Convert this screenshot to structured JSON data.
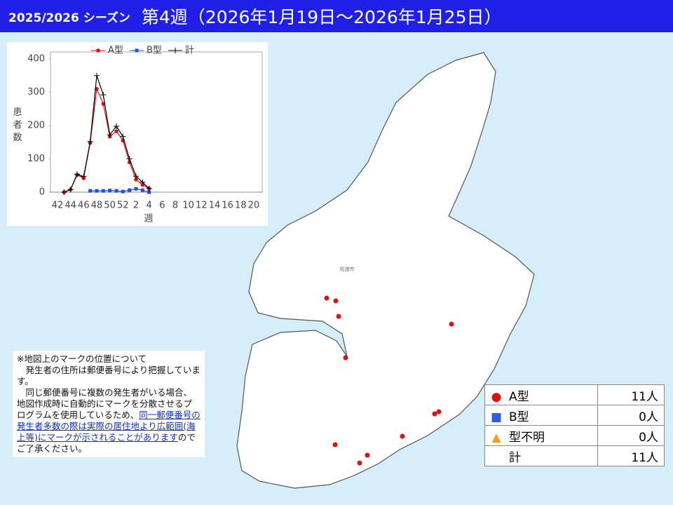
{
  "header": {
    "season": "2025/2026 シーズン",
    "week": "第4週（2026年1月19日～2026年1月25日）"
  },
  "chart_data": {
    "type": "line",
    "y_label": "患者数",
    "x_label": "週",
    "categories": [
      "42",
      null,
      "44",
      null,
      "46",
      null,
      "48",
      null,
      "50",
      null,
      "52",
      null,
      "2",
      null,
      "4",
      null,
      "6",
      null,
      "8",
      null,
      "10",
      null,
      "12",
      null,
      "14",
      null,
      "16",
      null,
      "18",
      null,
      "20"
    ],
    "series": [
      {
        "name": "A型",
        "color": "#e01010",
        "marker": "circle",
        "values": [
          null,
          0,
          8,
          52,
          42,
          148,
          310,
          265,
          167,
          183,
          155,
          90,
          38,
          22,
          11,
          null,
          null,
          null,
          null,
          null,
          null,
          null,
          null,
          null,
          null,
          null,
          null,
          null,
          null,
          null,
          null
        ]
      },
      {
        "name": "B型",
        "color": "#2050e0",
        "marker": "square",
        "values": [
          null,
          null,
          null,
          null,
          null,
          4,
          4,
          4,
          5,
          4,
          2,
          6,
          10,
          6,
          0,
          null,
          null,
          null,
          null,
          null,
          null,
          null,
          null,
          null,
          null,
          null,
          null,
          null,
          null,
          null,
          null
        ]
      },
      {
        "name": "計",
        "color": "#000000",
        "marker": "plus",
        "values": [
          null,
          0,
          8,
          54,
          47,
          152,
          350,
          292,
          172,
          198,
          167,
          100,
          48,
          30,
          11,
          null,
          null,
          null,
          null,
          null,
          null,
          null,
          null,
          null,
          null,
          null,
          null,
          null,
          null,
          null,
          null
        ]
      }
    ],
    "ylim": [
      0,
      400
    ],
    "yticks": [
      0,
      100,
      200,
      300,
      400
    ],
    "legend": "top"
  },
  "map": {
    "city": "佐渡市"
  },
  "note": {
    "heading": "※地図上のマークの位置について",
    "p1": "発生者の住所は郵便番号により把握しています。",
    "p2": "同じ郵便番号に複数の発生者がいる場合、地図作成時に自動的にマークを分散させるプログラムを使用しているため、",
    "link": "同一郵便番号の発生者多数の際は実際の居住地より広範囲(海上等)にマークが示されることがあります",
    "p3": "のでご了承ください。"
  },
  "legend_table": {
    "rows": [
      {
        "label": "A型",
        "count": "11人"
      },
      {
        "label": "B型",
        "count": "0人"
      },
      {
        "label": "型不明",
        "count": "0人"
      },
      {
        "label": "計",
        "count": "11人"
      }
    ]
  }
}
